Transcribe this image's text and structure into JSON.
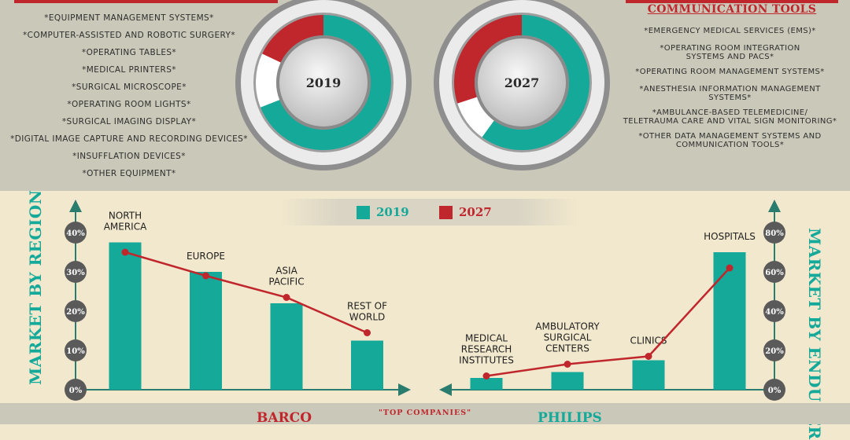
{
  "equipment_list": [
    "*EQUIPMENT MANAGEMENT SYSTEMS*",
    "*COMPUTER-ASSISTED AND ROBOTIC SURGERY*",
    "*OPERATING TABLES*",
    "*MEDICAL PRINTERS*",
    "*SURGICAL MICROSCOPE*",
    "*OPERATING ROOM LIGHTS*",
    "*SURGICAL IMAGING DISPLAY*",
    "*DIGITAL IMAGE CAPTURE AND RECORDING DEVICES*",
    "*INSUFFLATION DEVICES*",
    "*OTHER EQUIPMENT*"
  ],
  "communication_heading": "COMMUNICATION TOOLS",
  "communication_list": [
    [
      "*EMERGENCY MEDICAL SERVICES (EMS)*"
    ],
    [
      "*OPERATING ROOM INTEGRATION",
      "SYSTEMS AND PACS*"
    ],
    [
      "*OPERATING ROOM MANAGEMENT SYSTEMS*"
    ],
    [
      "*ANESTHESIA INFORMATION MANAGEMENT",
      "SYSTEMS*"
    ],
    [
      "*AMBULANCE-BASED TELEMEDICINE/",
      "TELETRAUMA CARE AND VITAL SIGN MONITORING*"
    ],
    [
      "*OTHER DATA MANAGEMENT SYSTEMS AND",
      "COMMUNICATION TOOLS*"
    ]
  ],
  "colors": {
    "teal": "#15a99a",
    "red": "#c0272d",
    "grey": "#8f8f8f",
    "text": "#1f1f1f"
  },
  "legend": [
    {
      "label": "2019",
      "color": "#15a99a"
    },
    {
      "label": "2027",
      "color": "#c0272d"
    }
  ],
  "region_title": "MARKET BY REGION",
  "enduser_title": "MARKET BY ENDUSER",
  "top_companies_label": "\"TOP COMPANIES\"",
  "companies": [
    {
      "name": "BARCO",
      "color": "#c0272d"
    },
    {
      "name": "PHILIPS",
      "color": "#15a99a"
    }
  ],
  "chart_data": [
    {
      "type": "pie",
      "title": "2019",
      "slices": [
        {
          "color": "#15a99a",
          "value": 0.69
        },
        {
          "color": "#ffffff",
          "value": 0.13
        },
        {
          "color": "#c0272d",
          "value": 0.18
        }
      ]
    },
    {
      "type": "pie",
      "title": "2027",
      "slices": [
        {
          "color": "#15a99a",
          "value": 0.6
        },
        {
          "color": "#ffffff",
          "value": 0.1
        },
        {
          "color": "#c0272d",
          "value": 0.3
        }
      ]
    },
    {
      "type": "bar",
      "title": "MARKET BY REGION",
      "ylim": [
        0,
        40
      ],
      "yticks": [
        "0%",
        "10%",
        "20%",
        "30%",
        "40%"
      ],
      "categories": [
        [
          "NORTH",
          "AMERICA"
        ],
        [
          "EUROPE"
        ],
        [
          "ASIA",
          "PACIFIC"
        ],
        [
          "REST OF",
          "WORLD"
        ]
      ],
      "series": [
        {
          "name": "2019",
          "kind": "bar",
          "values": [
            37.5,
            30,
            22,
            12.5
          ]
        },
        {
          "name": "2027",
          "kind": "line",
          "values": [
            35,
            29,
            23.5,
            14.5
          ]
        }
      ]
    },
    {
      "type": "bar",
      "title": "MARKET BY ENDUSER",
      "ylim": [
        0,
        80
      ],
      "yticks": [
        "0%",
        "20%",
        "40%",
        "60%",
        "80%"
      ],
      "categories": [
        [
          "MEDICAL",
          "RESEARCH",
          "INSTITUTES"
        ],
        [
          "AMBULATORY",
          "SURGICAL",
          "CENTERS"
        ],
        [
          "CLINICS"
        ],
        [
          "HOSPITALS"
        ]
      ],
      "series": [
        {
          "name": "2019",
          "kind": "bar",
          "values": [
            6,
            9,
            15,
            70
          ]
        },
        {
          "name": "2027",
          "kind": "line",
          "values": [
            7,
            13,
            17,
            62
          ]
        }
      ]
    }
  ]
}
